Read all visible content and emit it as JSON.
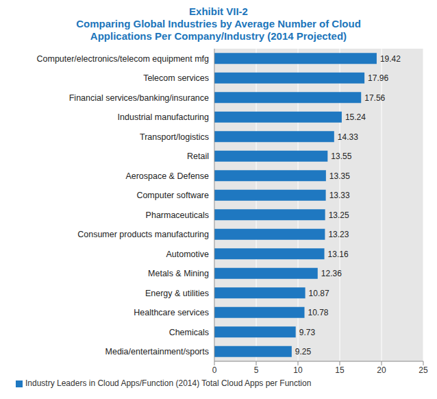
{
  "chart_data": {
    "type": "bar",
    "title": "Exhibit VII-2",
    "subtitle": "Comparing Global Industries by Average Number of Cloud Applications Per Company/Industry (2014 Projected)",
    "orientation": "horizontal",
    "categories": [
      "Computer/electronics/telecom equipment mfg",
      "Telecom services",
      "Financial services/banking/insurance",
      "Industrial manufacturing",
      "Transport/logistics",
      "Retail",
      "Aerospace & Defense",
      "Computer software",
      "Pharmaceuticals",
      "Consumer products manufacturing",
      "Automotive",
      "Metals & Mining",
      "Energy & utilities",
      "Healthcare services",
      "Chemicals",
      "Media/entertainment/sports"
    ],
    "series": [
      {
        "name": "Industry Leaders in Cloud Apps/Function (2014) Total Cloud Apps per Function",
        "color": "#1f78c1",
        "values": [
          19.42,
          17.96,
          17.56,
          15.24,
          14.33,
          13.55,
          13.35,
          13.33,
          13.25,
          13.23,
          13.16,
          12.36,
          10.87,
          10.78,
          9.73,
          9.25
        ]
      }
    ],
    "xlim": [
      0,
      25
    ],
    "xticks": [
      0,
      5,
      10,
      15,
      20,
      25
    ],
    "grid": true,
    "data_labels": true,
    "legend": "bottom"
  }
}
